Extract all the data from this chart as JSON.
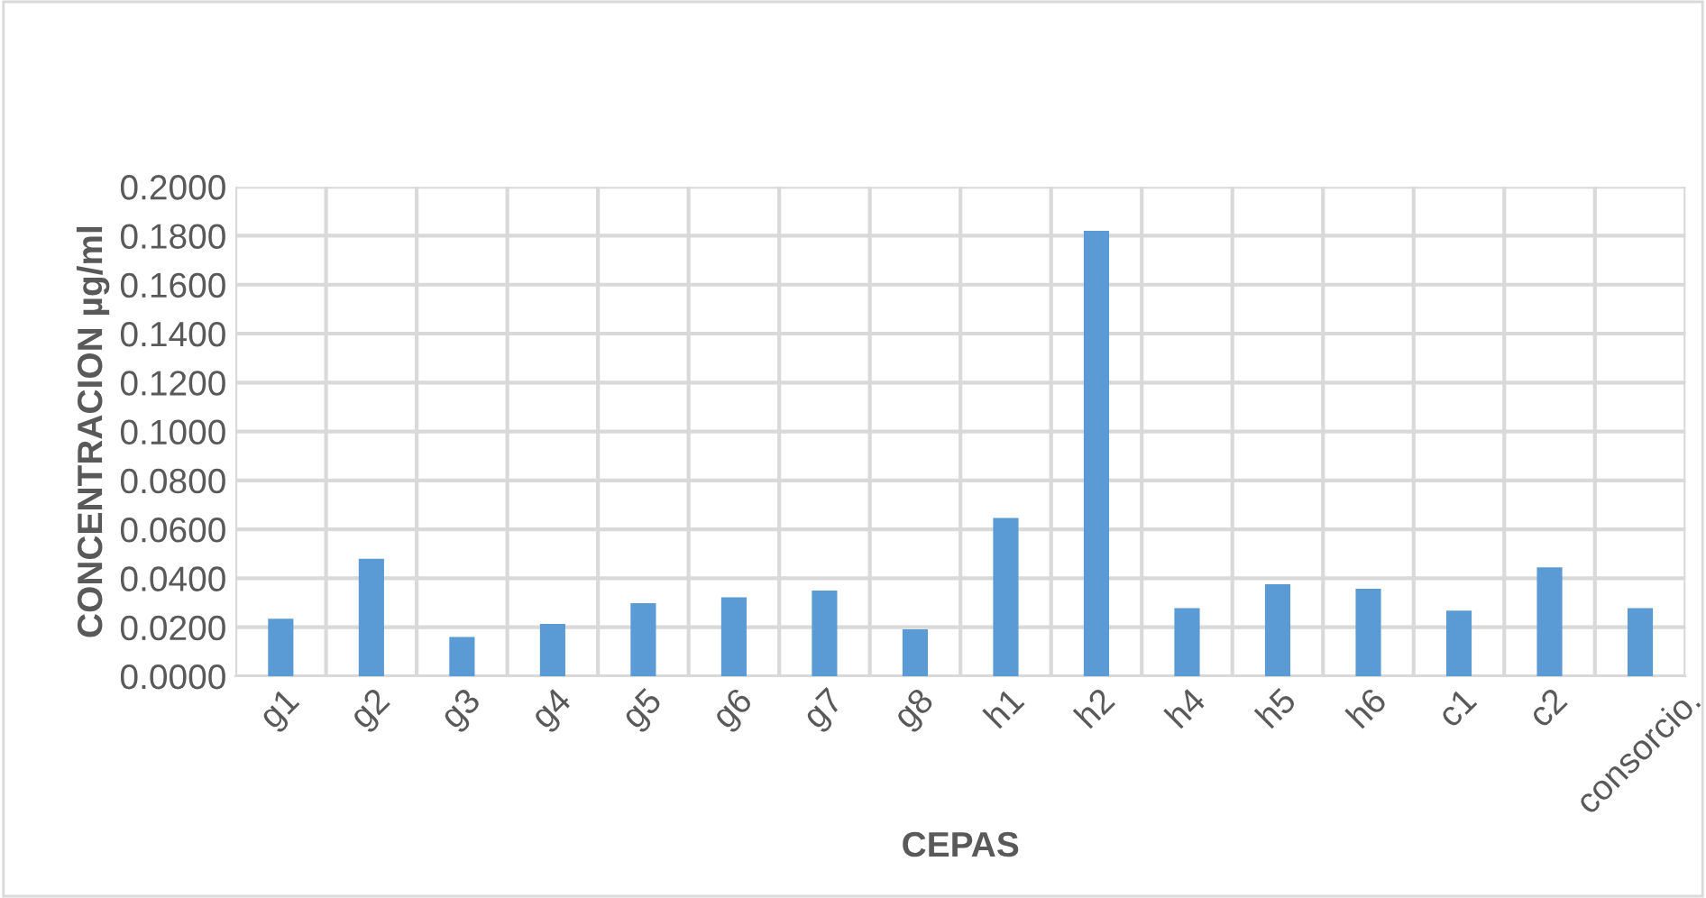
{
  "chart_data": {
    "type": "bar",
    "xlabel": "CEPAS",
    "ylabel": "CONCENTRACION µg/ml",
    "categories": [
      "g1",
      "g2",
      "g3",
      "g4",
      "g5",
      "g6",
      "g7",
      "g8",
      "h1",
      "h2",
      "h4",
      "h5",
      "h6",
      "c1",
      "c2",
      "consorcio."
    ],
    "values": [
      0.0235,
      0.048,
      0.016,
      0.0214,
      0.0298,
      0.0322,
      0.035,
      0.0192,
      0.0647,
      0.182,
      0.0278,
      0.0376,
      0.0357,
      0.0268,
      0.0445,
      0.0278
    ],
    "color": "#5b9bd5",
    "ylim": [
      0,
      0.2
    ],
    "yticks": [
      {
        "value": 0,
        "label": "0.0000"
      },
      {
        "value": 0.02,
        "label": "0.0200"
      },
      {
        "value": 0.04,
        "label": "0.0400"
      },
      {
        "value": 0.06,
        "label": "0.0600"
      },
      {
        "value": 0.08,
        "label": "0.0800"
      },
      {
        "value": 0.1,
        "label": "0.1000"
      },
      {
        "value": 0.12,
        "label": "0.1200"
      },
      {
        "value": 0.14,
        "label": "0.1400"
      },
      {
        "value": 0.16,
        "label": "0.1600"
      },
      {
        "value": 0.18,
        "label": "0.1800"
      },
      {
        "value": 0.2,
        "label": "0.2000"
      }
    ],
    "grid": true
  }
}
